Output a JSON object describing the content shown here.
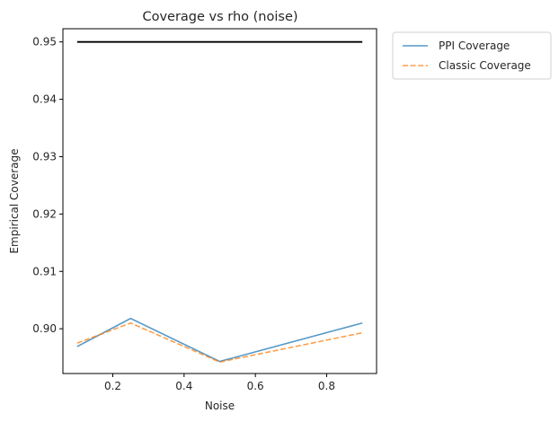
{
  "chart_data": {
    "type": "line",
    "title": "Coverage vs rho (noise)",
    "xlabel": "Noise",
    "ylabel": "Empirical Coverage",
    "xlim": [
      0.06,
      0.94
    ],
    "ylim": [
      0.8922,
      0.9523
    ],
    "xticks": [
      0.2,
      0.4,
      0.6,
      0.8
    ],
    "xtick_labels": [
      "0.2",
      "0.4",
      "0.6",
      "0.8"
    ],
    "yticks": [
      0.9,
      0.91,
      0.92,
      0.93,
      0.94,
      0.95
    ],
    "ytick_labels": [
      "0.90",
      "0.91",
      "0.92",
      "0.93",
      "0.94",
      "0.95"
    ],
    "x": [
      0.1,
      0.25,
      0.5,
      0.9
    ],
    "series": [
      {
        "name": "PPI Coverage",
        "values": [
          0.8969,
          0.9018,
          0.8943,
          0.901
        ],
        "color": "#1f77b4",
        "style": "solid"
      },
      {
        "name": "Classic Coverage",
        "values": [
          0.8975,
          0.901,
          0.8942,
          0.8993
        ],
        "color": "#ff7f0e",
        "style": "dashed"
      }
    ],
    "reference_line": {
      "y": 0.95,
      "x_range": [
        0.1,
        0.9
      ],
      "color": "#000000"
    },
    "grid": false,
    "legend_position": "outside upper right"
  }
}
